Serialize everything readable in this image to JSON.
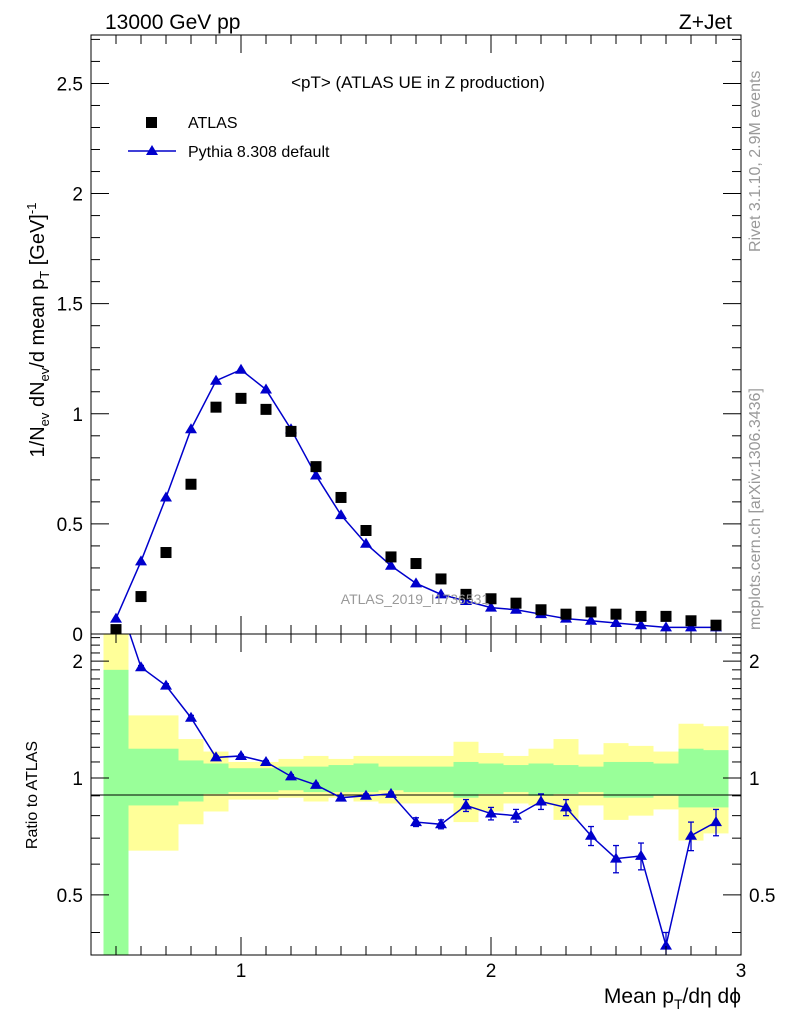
{
  "header": {
    "left": "13000 GeV pp",
    "right": "Z+Jet"
  },
  "side_labels": {
    "rivet": "Rivet 3.1.10,  2.9M events",
    "mcplots": "mcplots.cern.ch [arXiv:1306.3436]"
  },
  "colors": {
    "data": "#000000",
    "mc": "#0000cc",
    "band_inner": "#99ff99",
    "band_outer": "#ffff99"
  },
  "chart_data": [
    {
      "type": "scatter",
      "title": "<pT> (ATLAS UE in Z production)",
      "watermark": "ATLAS_2019_I1736531",
      "ylabel": "1/N_ev dN_ev/d mean p_T [GeV]^-1",
      "xlim": [
        0.4,
        3.0
      ],
      "ylim": [
        0,
        2.72
      ],
      "yticks": [
        "0",
        "0.5",
        "1",
        "1.5",
        "2",
        "2.5"
      ],
      "legend_position": "top-left",
      "x": [
        0.5,
        0.6,
        0.7,
        0.8,
        0.9,
        1.0,
        1.1,
        1.2,
        1.3,
        1.4,
        1.5,
        1.6,
        1.7,
        1.8,
        1.9,
        2.0,
        2.1,
        2.2,
        2.3,
        2.4,
        2.5,
        2.6,
        2.7,
        2.8,
        2.9
      ],
      "series": [
        {
          "name": "ATLAS",
          "marker": "square",
          "values": [
            0.02,
            0.17,
            0.37,
            0.68,
            1.03,
            1.07,
            1.02,
            0.92,
            0.76,
            0.62,
            0.47,
            0.35,
            0.32,
            0.25,
            0.18,
            0.16,
            0.14,
            0.11,
            0.09,
            0.1,
            0.09,
            0.08,
            0.08,
            0.06,
            0.04
          ]
        },
        {
          "name": "Pythia 8.308 default",
          "marker": "triangle",
          "values": [
            0.07,
            0.33,
            0.62,
            0.93,
            1.15,
            1.2,
            1.11,
            0.93,
            0.72,
            0.54,
            0.41,
            0.31,
            0.23,
            0.18,
            0.15,
            0.12,
            0.11,
            0.09,
            0.07,
            0.06,
            0.05,
            0.04,
            0.03,
            0.03,
            0.03
          ]
        }
      ]
    },
    {
      "type": "line",
      "ylabel": "Ratio to ATLAS",
      "xlabel": "Mean p_T/dη dϕ",
      "xlim": [
        0.4,
        3.0
      ],
      "ylim": [
        0.35,
        2.35
      ],
      "log_y": true,
      "xticks": [
        "1",
        "2",
        "3"
      ],
      "yticks": [
        "0.5",
        "1",
        "2"
      ],
      "x": [
        0.5,
        0.6,
        0.7,
        0.8,
        0.9,
        1.0,
        1.1,
        1.2,
        1.3,
        1.4,
        1.5,
        1.6,
        1.7,
        1.8,
        1.9,
        2.0,
        2.1,
        2.2,
        2.3,
        2.4,
        2.5,
        2.6,
        2.7,
        2.8,
        2.9
      ],
      "series": [
        {
          "name": "Pythia 8.308 default",
          "values": [
            3.0,
            1.93,
            1.73,
            1.43,
            1.13,
            1.14,
            1.1,
            1.01,
            0.96,
            0.89,
            0.9,
            0.91,
            0.77,
            0.76,
            0.85,
            0.81,
            0.8,
            0.87,
            0.84,
            0.71,
            0.62,
            0.63,
            0.37,
            0.71,
            0.77
          ],
          "errors": [
            0,
            0.02,
            0.02,
            0.02,
            0.01,
            0.01,
            0.01,
            0.01,
            0.01,
            0.01,
            0.01,
            0.01,
            0.02,
            0.02,
            0.03,
            0.03,
            0.03,
            0.04,
            0.04,
            0.04,
            0.05,
            0.05,
            0.03,
            0.06,
            0.06
          ]
        }
      ],
      "band_inner": {
        "lo": [
          0.35,
          0.85,
          0.85,
          0.87,
          0.91,
          0.92,
          0.92,
          0.93,
          0.92,
          0.92,
          0.92,
          0.93,
          0.92,
          0.92,
          0.89,
          0.91,
          0.92,
          0.9,
          0.91,
          0.92,
          0.89,
          0.89,
          0.9,
          0.84,
          0.84
        ],
        "hi": [
          1.9,
          1.19,
          1.19,
          1.11,
          1.09,
          1.06,
          1.06,
          1.07,
          1.07,
          1.08,
          1.09,
          1.07,
          1.07,
          1.07,
          1.1,
          1.09,
          1.08,
          1.09,
          1.08,
          1.07,
          1.1,
          1.1,
          1.09,
          1.19,
          1.18
        ]
      },
      "band_outer": {
        "lo": [
          0.35,
          0.65,
          0.65,
          0.76,
          0.82,
          0.88,
          0.88,
          0.89,
          0.87,
          0.89,
          0.87,
          0.86,
          0.86,
          0.86,
          0.77,
          0.82,
          0.86,
          0.85,
          0.78,
          0.85,
          0.78,
          0.8,
          0.83,
          0.69,
          0.72
        ],
        "hi": [
          2.35,
          1.45,
          1.45,
          1.26,
          1.17,
          1.1,
          1.1,
          1.12,
          1.14,
          1.12,
          1.14,
          1.14,
          1.14,
          1.14,
          1.24,
          1.16,
          1.14,
          1.19,
          1.26,
          1.15,
          1.23,
          1.21,
          1.17,
          1.38,
          1.36
        ]
      }
    }
  ]
}
